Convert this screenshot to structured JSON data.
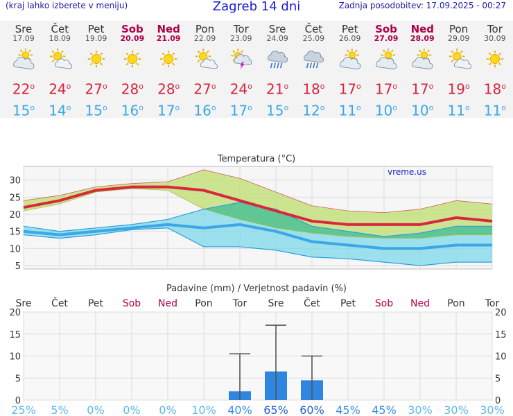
{
  "header": {
    "left": "(kraj lahko izberete v meniju)",
    "title": "Zagreb 14 dni",
    "right": "Zadnja posodobitev: 17.09.2025 - 00:27"
  },
  "days": [
    {
      "name": "Sre",
      "date": "17.09",
      "weekend": false,
      "icon": "partly-cloudy-icon",
      "hi": "22",
      "lo": "15"
    },
    {
      "name": "Čet",
      "date": "18.09",
      "weekend": false,
      "icon": "sun-cloud-icon",
      "hi": "24",
      "lo": "14"
    },
    {
      "name": "Pet",
      "date": "19.09",
      "weekend": false,
      "icon": "sun-icon",
      "hi": "27",
      "lo": "15"
    },
    {
      "name": "Sob",
      "date": "20.09",
      "weekend": true,
      "icon": "sun-icon",
      "hi": "28",
      "lo": "16"
    },
    {
      "name": "Ned",
      "date": "21.09",
      "weekend": true,
      "icon": "sun-icon",
      "hi": "28",
      "lo": "17"
    },
    {
      "name": "Pon",
      "date": "22.09",
      "weekend": false,
      "icon": "sun-cloud-icon",
      "hi": "27",
      "lo": "16"
    },
    {
      "name": "Tor",
      "date": "23.09",
      "weekend": false,
      "icon": "thunderstorm-icon",
      "hi": "24",
      "lo": "17"
    },
    {
      "name": "Sre",
      "date": "24.09",
      "weekend": false,
      "icon": "rain-icon",
      "hi": "21",
      "lo": "15"
    },
    {
      "name": "Čet",
      "date": "25.09",
      "weekend": false,
      "icon": "rain-icon",
      "hi": "18",
      "lo": "12"
    },
    {
      "name": "Pet",
      "date": "26.09",
      "weekend": false,
      "icon": "partly-cloudy-icon",
      "hi": "17",
      "lo": "11"
    },
    {
      "name": "Sob",
      "date": "27.09",
      "weekend": true,
      "icon": "partly-cloudy-icon",
      "hi": "17",
      "lo": "10"
    },
    {
      "name": "Ned",
      "date": "28.09",
      "weekend": true,
      "icon": "partly-cloudy-icon",
      "hi": "17",
      "lo": "10"
    },
    {
      "name": "Pon",
      "date": "29.09",
      "weekend": false,
      "icon": "sun-cloud-icon",
      "hi": "19",
      "lo": "11"
    },
    {
      "name": "Tor",
      "date": "30.09",
      "weekend": false,
      "icon": "sun-icon",
      "hi": "18",
      "lo": "11"
    }
  ],
  "degree_mark": "o",
  "chart_data": [
    {
      "type": "area",
      "title": "Temperatura (°C)",
      "source_label": "vreme.us",
      "categories": [
        "Sre",
        "Čet",
        "Pet",
        "Sob",
        "Ned",
        "Pon",
        "Tor",
        "Sre",
        "Čet",
        "Pet",
        "Sob",
        "Ned",
        "Pon",
        "Tor"
      ],
      "ylim": [
        4,
        34
      ],
      "yticks": [
        5,
        10,
        15,
        20,
        25,
        30
      ],
      "grid": true,
      "series": [
        {
          "role": "max-upper",
          "values": [
            24,
            25.5,
            28,
            29,
            29.5,
            33,
            30.5,
            26.5,
            22.5,
            21,
            20.5,
            21.5,
            24,
            23
          ]
        },
        {
          "role": "max-lower",
          "values": [
            21,
            23,
            26.5,
            27.5,
            27,
            21.5,
            18.5,
            16,
            14.5,
            13.5,
            13,
            13,
            14,
            14
          ]
        },
        {
          "role": "max",
          "values": [
            22,
            24,
            27,
            28,
            28,
            27,
            24,
            21,
            18,
            17,
            17,
            17,
            19,
            18
          ]
        },
        {
          "role": "min-upper",
          "values": [
            16.5,
            15,
            16,
            17,
            18.5,
            21.5,
            23.5,
            21.5,
            16.5,
            15,
            13.5,
            14.5,
            16.5,
            16.5
          ]
        },
        {
          "role": "min-lower",
          "values": [
            14,
            13,
            14,
            15.5,
            16,
            10.5,
            10.5,
            9.5,
            7.5,
            7,
            6,
            5,
            6,
            6
          ]
        },
        {
          "role": "min",
          "values": [
            15,
            14,
            15,
            16,
            17,
            16,
            17,
            15,
            12,
            11,
            10,
            10,
            11,
            11
          ]
        }
      ],
      "colors": {
        "max": "#d8283e",
        "min": "#3aa8e6",
        "max_band": "#c4e07c",
        "min_band": "#7fd8ea",
        "overlap": "#3fb86a"
      }
    },
    {
      "type": "bar",
      "title": "Padavine (mm) / Verjetnost padavin (%)",
      "categories": [
        "Sre",
        "Čet",
        "Pet",
        "Sob",
        "Ned",
        "Pon",
        "Tor",
        "Sre",
        "Čet",
        "Pet",
        "Sob",
        "Ned",
        "Pon",
        "Tor"
      ],
      "weekend": [
        false,
        false,
        false,
        true,
        true,
        false,
        false,
        false,
        false,
        false,
        true,
        true,
        false,
        false
      ],
      "ylim": [
        0,
        20
      ],
      "yticks": [
        0,
        5,
        10,
        15,
        20
      ],
      "values": [
        0,
        0,
        0,
        0,
        0,
        0,
        2,
        6.5,
        4.5,
        0,
        0,
        0,
        0,
        0
      ],
      "error_max": [
        0,
        0,
        0,
        0,
        0,
        0,
        10.5,
        17,
        10,
        0,
        0,
        0,
        0,
        0
      ],
      "probability": [
        "25%",
        "5%",
        "0%",
        "0%",
        "0%",
        "10%",
        "40%",
        "65%",
        "60%",
        "45%",
        "45%",
        "30%",
        "30%",
        "30%"
      ],
      "probability_values": [
        25,
        5,
        0,
        0,
        0,
        10,
        40,
        65,
        60,
        45,
        45,
        30,
        30,
        30
      ],
      "colors": {
        "bar": "#2e86e0"
      }
    }
  ]
}
